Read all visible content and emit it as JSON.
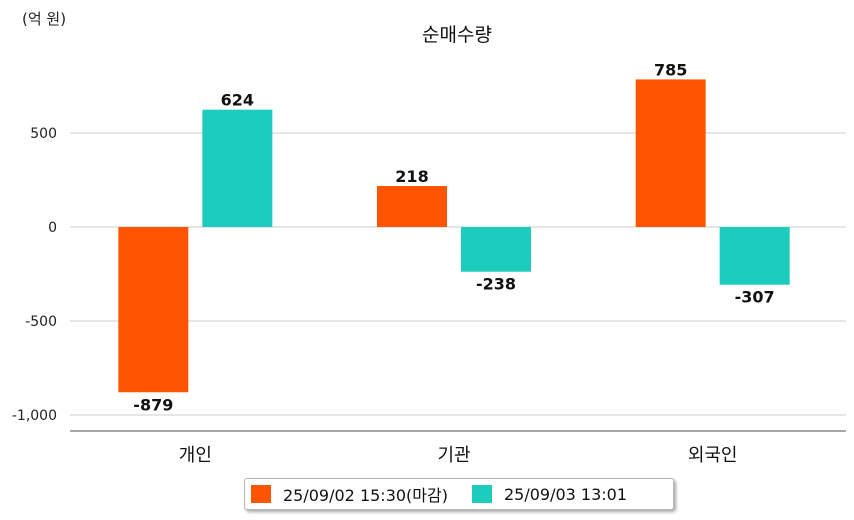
{
  "chart_data": {
    "type": "bar",
    "title": "순매수량",
    "unit_label": "(억 원)",
    "categories": [
      "개인",
      "기관",
      "외국인"
    ],
    "series": [
      {
        "name": "25/09/02 15:30(마감)",
        "color": "#ff5500",
        "values": [
          -879,
          218,
          785
        ]
      },
      {
        "name": "25/09/03 13:01",
        "color": "#1ccdbd",
        "values": [
          624,
          -238,
          -307
        ]
      }
    ],
    "y_ticks": [
      500,
      0,
      -500,
      -1000
    ],
    "y_tick_labels": [
      "500",
      "0",
      "-500",
      "-1,000"
    ],
    "ylim": [
      -1100,
      930
    ],
    "grid": true,
    "legend_position": "bottom"
  }
}
